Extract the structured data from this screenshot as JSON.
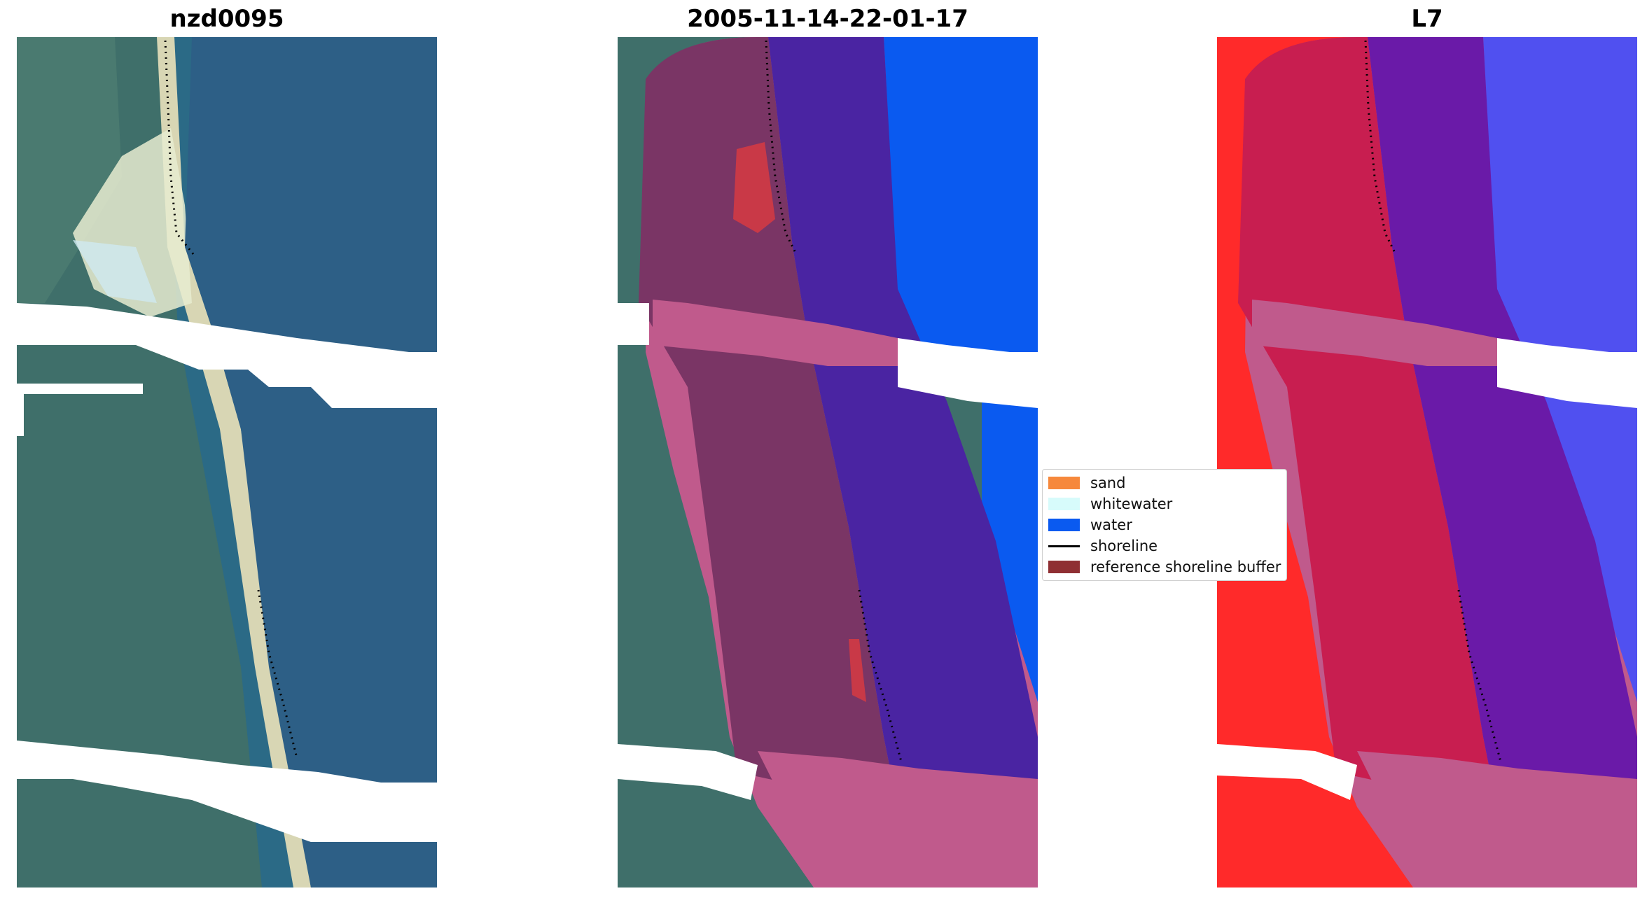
{
  "panels": [
    {
      "title": "nzd0095"
    },
    {
      "title": "2005-11-14-22-01-17"
    },
    {
      "title": "L7"
    }
  ],
  "legend": {
    "items": [
      {
        "label": "sand",
        "color": "#f6883c",
        "kind": "patch"
      },
      {
        "label": "whitewater",
        "color": "#d7fbfb",
        "kind": "patch"
      },
      {
        "label": "water",
        "color": "#0a5af0",
        "kind": "patch"
      },
      {
        "label": "shoreline",
        "color": "#000000",
        "kind": "line"
      },
      {
        "label": "reference shoreline buffer",
        "color": "#8f2f33",
        "kind": "patch"
      }
    ]
  },
  "colors": {
    "water": "#0a5af0",
    "land_rgb": "#2d5f6a",
    "sea_rgb": "#2d5f86",
    "sand_rgb": "#d9d6b0",
    "buffer_pink": "#c05a8c",
    "land_class": "#7a3565",
    "water_class": "#4a24a2",
    "nir_red": "#ff2a2a",
    "nir_blue": "#5050f0"
  }
}
